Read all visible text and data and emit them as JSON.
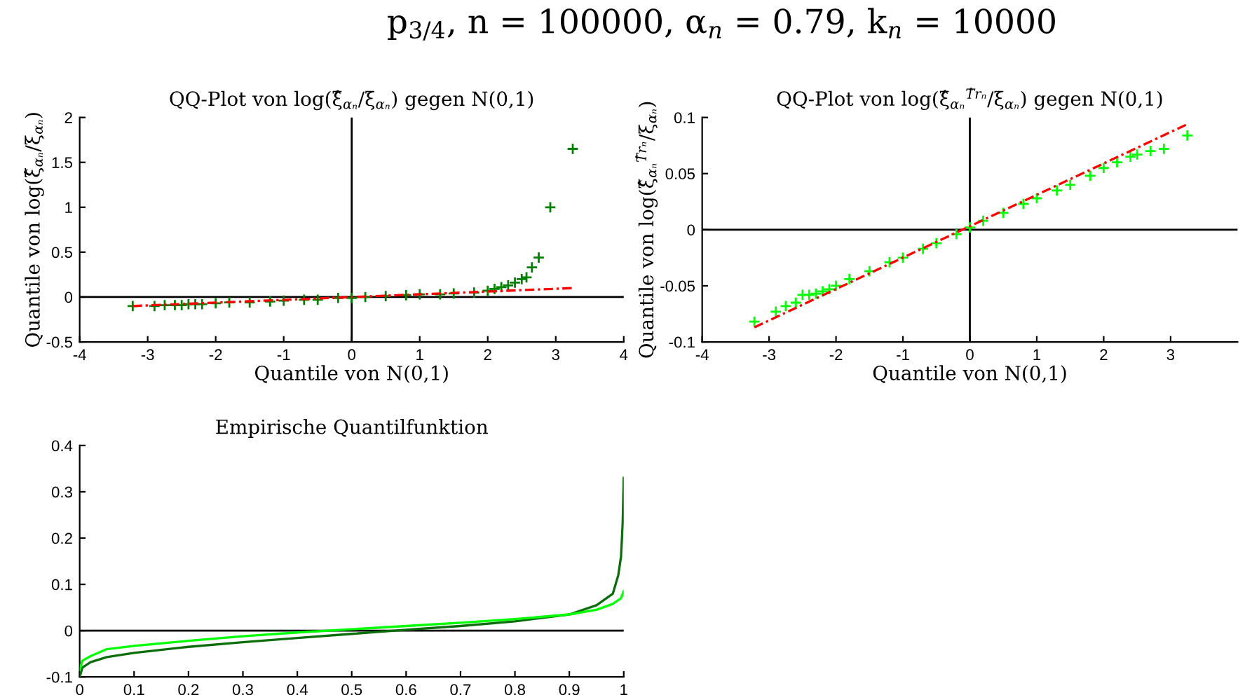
{
  "chart_data": [
    {
      "type": "scatter",
      "title": "QQ-Plot von log(ξ̂$_{αₙ}$/ξ$_{αₙ}$) gegen N(0,1)",
      "xlabel": "Quantile von N(0,1)",
      "ylabel": "Quantile von log(ξ̂$_{αₙ}$/ξ$_{αₙ}$)",
      "annotations": [
        "p$_{3/4}$, n = 100000, α$_{n}$ = 0.79, k$_{n}$ = 10000"
      ],
      "xlim": [
        -4,
        4
      ],
      "xticks": [
        -4,
        -3,
        -2,
        -1,
        0,
        1,
        2,
        3,
        4
      ],
      "ylim": [
        -0.5,
        2
      ],
      "yticks": [
        -0.5,
        0,
        0.5,
        1,
        1.5,
        2
      ],
      "grid": false,
      "ref_lines": [
        {
          "axis": "x",
          "value": 0,
          "color": "#000000"
        },
        {
          "axis": "y",
          "value": 0,
          "color": "#000000"
        }
      ],
      "series": [
        {
          "type": "scatter",
          "marker": "cross",
          "color": "#008000",
          "x": [
            -3.22,
            -2.9,
            -2.75,
            -2.6,
            -2.5,
            -2.4,
            -2.3,
            -2.2,
            -2.0,
            -1.8,
            -1.5,
            -1.2,
            -1.0,
            -0.7,
            -0.5,
            -0.2,
            0,
            0.2,
            0.5,
            0.8,
            1.0,
            1.3,
            1.5,
            1.8,
            2.0,
            2.1,
            2.2,
            2.3,
            2.4,
            2.5,
            2.57,
            2.65,
            2.75,
            2.92,
            3.25
          ],
          "values": [
            -0.1,
            -0.1,
            -0.09,
            -0.09,
            -0.09,
            -0.08,
            -0.08,
            -0.08,
            -0.07,
            -0.06,
            -0.06,
            -0.05,
            -0.04,
            -0.03,
            -0.03,
            -0.01,
            -0.01,
            0,
            0.01,
            0.02,
            0.03,
            0.03,
            0.04,
            0.05,
            0.07,
            0.09,
            0.11,
            0.13,
            0.16,
            0.2,
            0.22,
            0.33,
            0.44,
            1.0,
            1.65
          ]
        },
        {
          "type": "line",
          "color": "#ff0000",
          "line_style": "dashed",
          "x": [
            -3.22,
            3.25
          ],
          "values": [
            -0.1,
            0.1
          ]
        }
      ]
    },
    {
      "type": "scatter",
      "title": "QQ-Plot von log(ξ̂$_{αₙ}$$^{T̂rₙ}$/ξ$_{αₙ}$) gegen N(0,1)",
      "xlabel": "Quantile von N(0,1)",
      "ylabel": "Quantile von log(ξ̂$_{αₙ}$$^{T̂rₙ}$/ξ$_{αₙ}$)",
      "xlim": [
        -4,
        4
      ],
      "xticks": [
        -4,
        -3,
        -2,
        -1,
        0,
        1,
        2,
        3
      ],
      "ylim": [
        -0.1,
        0.1
      ],
      "yticks": [
        -0.1,
        -0.05,
        0,
        0.05,
        0.1
      ],
      "grid": false,
      "ref_lines": [
        {
          "axis": "x",
          "value": 0,
          "color": "#000000"
        },
        {
          "axis": "y",
          "value": 0,
          "color": "#000000"
        }
      ],
      "series": [
        {
          "type": "scatter",
          "marker": "cross",
          "color": "#00ff00",
          "x": [
            -3.22,
            -2.9,
            -2.75,
            -2.6,
            -2.5,
            -2.4,
            -2.3,
            -2.2,
            -2.1,
            -2.0,
            -1.8,
            -1.5,
            -1.2,
            -1.0,
            -0.7,
            -0.5,
            -0.2,
            0,
            0.2,
            0.5,
            0.8,
            1.0,
            1.3,
            1.5,
            1.8,
            2.0,
            2.2,
            2.4,
            2.5,
            2.7,
            2.9,
            3.25
          ],
          "values": [
            -0.082,
            -0.073,
            -0.068,
            -0.065,
            -0.058,
            -0.058,
            -0.057,
            -0.055,
            -0.053,
            -0.05,
            -0.044,
            -0.037,
            -0.029,
            -0.025,
            -0.017,
            -0.012,
            -0.004,
            0.002,
            0.008,
            0.015,
            0.023,
            0.028,
            0.035,
            0.04,
            0.048,
            0.055,
            0.06,
            0.065,
            0.067,
            0.07,
            0.072,
            0.084
          ]
        },
        {
          "type": "line",
          "color": "#ff0000",
          "line_style": "dashed",
          "x": [
            -3.22,
            3.25
          ],
          "values": [
            -0.087,
            0.094
          ]
        }
      ]
    },
    {
      "type": "line",
      "title": "Empirische Quantilfunktion",
      "xlim": [
        0,
        1
      ],
      "xticks": [
        0,
        0.1,
        0.2,
        0.3,
        0.4,
        0.5,
        0.6,
        0.7,
        0.8,
        0.9,
        1
      ],
      "ylim": [
        -0.1,
        0.4
      ],
      "yticks": [
        -0.1,
        0,
        0.1,
        0.2,
        0.3,
        0.4
      ],
      "grid": false,
      "ref_lines": [
        {
          "axis": "y",
          "value": 0,
          "color": "#000000"
        }
      ],
      "series": [
        {
          "color": "#0a6e0a",
          "x": [
            0,
            0.005,
            0.02,
            0.05,
            0.1,
            0.2,
            0.3,
            0.4,
            0.5,
            0.6,
            0.7,
            0.8,
            0.9,
            0.95,
            0.98,
            0.99,
            0.995,
            0.998,
            1.0
          ],
          "values": [
            -0.1,
            -0.08,
            -0.068,
            -0.057,
            -0.048,
            -0.035,
            -0.025,
            -0.016,
            -0.007,
            0.002,
            0.01,
            0.02,
            0.035,
            0.055,
            0.08,
            0.12,
            0.16,
            0.23,
            0.33
          ]
        },
        {
          "color": "#00ff00",
          "x": [
            0,
            0.005,
            0.02,
            0.05,
            0.1,
            0.2,
            0.3,
            0.4,
            0.5,
            0.6,
            0.7,
            0.8,
            0.9,
            0.95,
            0.98,
            0.995,
            1.0
          ],
          "values": [
            -0.085,
            -0.065,
            -0.055,
            -0.04,
            -0.033,
            -0.022,
            -0.012,
            -0.004,
            0.003,
            0.01,
            0.017,
            0.025,
            0.035,
            0.045,
            0.058,
            0.07,
            0.085
          ]
        }
      ]
    }
  ]
}
